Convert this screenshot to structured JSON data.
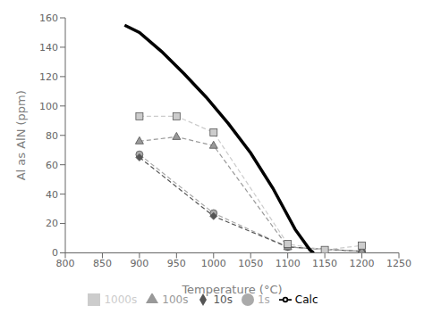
{
  "chart_data": {
    "type": "line",
    "xlabel": "Temperature (°C)",
    "ylabel": "Al as AlN (ppm)",
    "xlim": [
      800,
      1250
    ],
    "ylim": [
      0,
      160
    ],
    "xticks": [
      800,
      850,
      900,
      950,
      1000,
      1050,
      1100,
      1150,
      1200,
      1250
    ],
    "yticks": [
      0,
      20,
      40,
      60,
      80,
      100,
      120,
      140,
      160
    ],
    "grid": false,
    "legend": "bottom",
    "series": [
      {
        "name": "1s",
        "color": "#aaaaaa",
        "marker": "circle",
        "line_style": "dashed",
        "x": [
          900,
          1000,
          1100,
          1200
        ],
        "values": [
          67,
          27,
          4,
          1
        ]
      },
      {
        "name": "10s",
        "color": "#555555",
        "marker": "diamond",
        "line_style": "dashed",
        "x": [
          900,
          1000,
          1100,
          1200
        ],
        "values": [
          65,
          25,
          4,
          1
        ]
      },
      {
        "name": "100s",
        "color": "#999999",
        "marker": "triangle",
        "line_style": "dashed",
        "x": [
          900,
          950,
          1000,
          1100,
          1200
        ],
        "values": [
          76,
          79,
          73,
          4,
          1
        ]
      },
      {
        "name": "1000s",
        "color": "#cccccc",
        "marker": "square",
        "line_style": "dashed",
        "x": [
          900,
          950,
          1000,
          1100,
          1150,
          1200
        ],
        "values": [
          93,
          93,
          82,
          6,
          2,
          5
        ]
      },
      {
        "name": "Calc",
        "color": "#000000",
        "marker": "none",
        "line_style": "solid",
        "x": [
          880,
          900,
          930,
          960,
          990,
          1020,
          1050,
          1080,
          1110,
          1130,
          1135
        ],
        "values": [
          155,
          150,
          137,
          122,
          106,
          88,
          68,
          44,
          16,
          2,
          0
        ]
      }
    ]
  }
}
